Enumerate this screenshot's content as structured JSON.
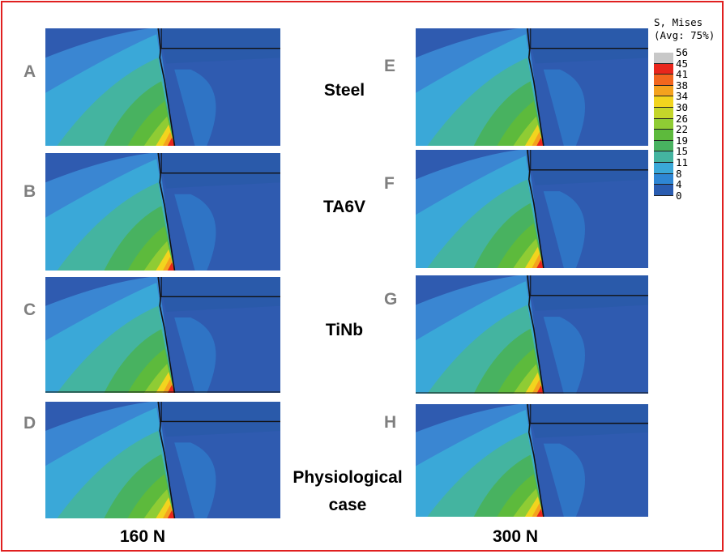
{
  "rows": [
    {
      "left_letter": "A",
      "right_letter": "E",
      "material": "Steel"
    },
    {
      "left_letter": "B",
      "right_letter": "F",
      "material": "TA6V"
    },
    {
      "left_letter": "C",
      "right_letter": "G",
      "material": "TiNb"
    },
    {
      "left_letter": "D",
      "right_letter": "H",
      "material": "Physiological case"
    }
  ],
  "columns": {
    "left_force": "160 N",
    "right_force": "300 N"
  },
  "legend": {
    "title_line1": "S, Mises",
    "title_line2": "(Avg: 75%)",
    "ticks": [
      "56",
      "45",
      "41",
      "38",
      "34",
      "30",
      "26",
      "22",
      "19",
      "15",
      "11",
      "8",
      "4",
      "0"
    ],
    "colors": [
      "#c8c8c8",
      "#e8261c",
      "#f2661e",
      "#f4a21e",
      "#f2d41e",
      "#c4d62a",
      "#8fcc34",
      "#5dba3c",
      "#48b260",
      "#44b4a0",
      "#3aa8d8",
      "#2e86d4",
      "#2a5cb0"
    ]
  }
}
